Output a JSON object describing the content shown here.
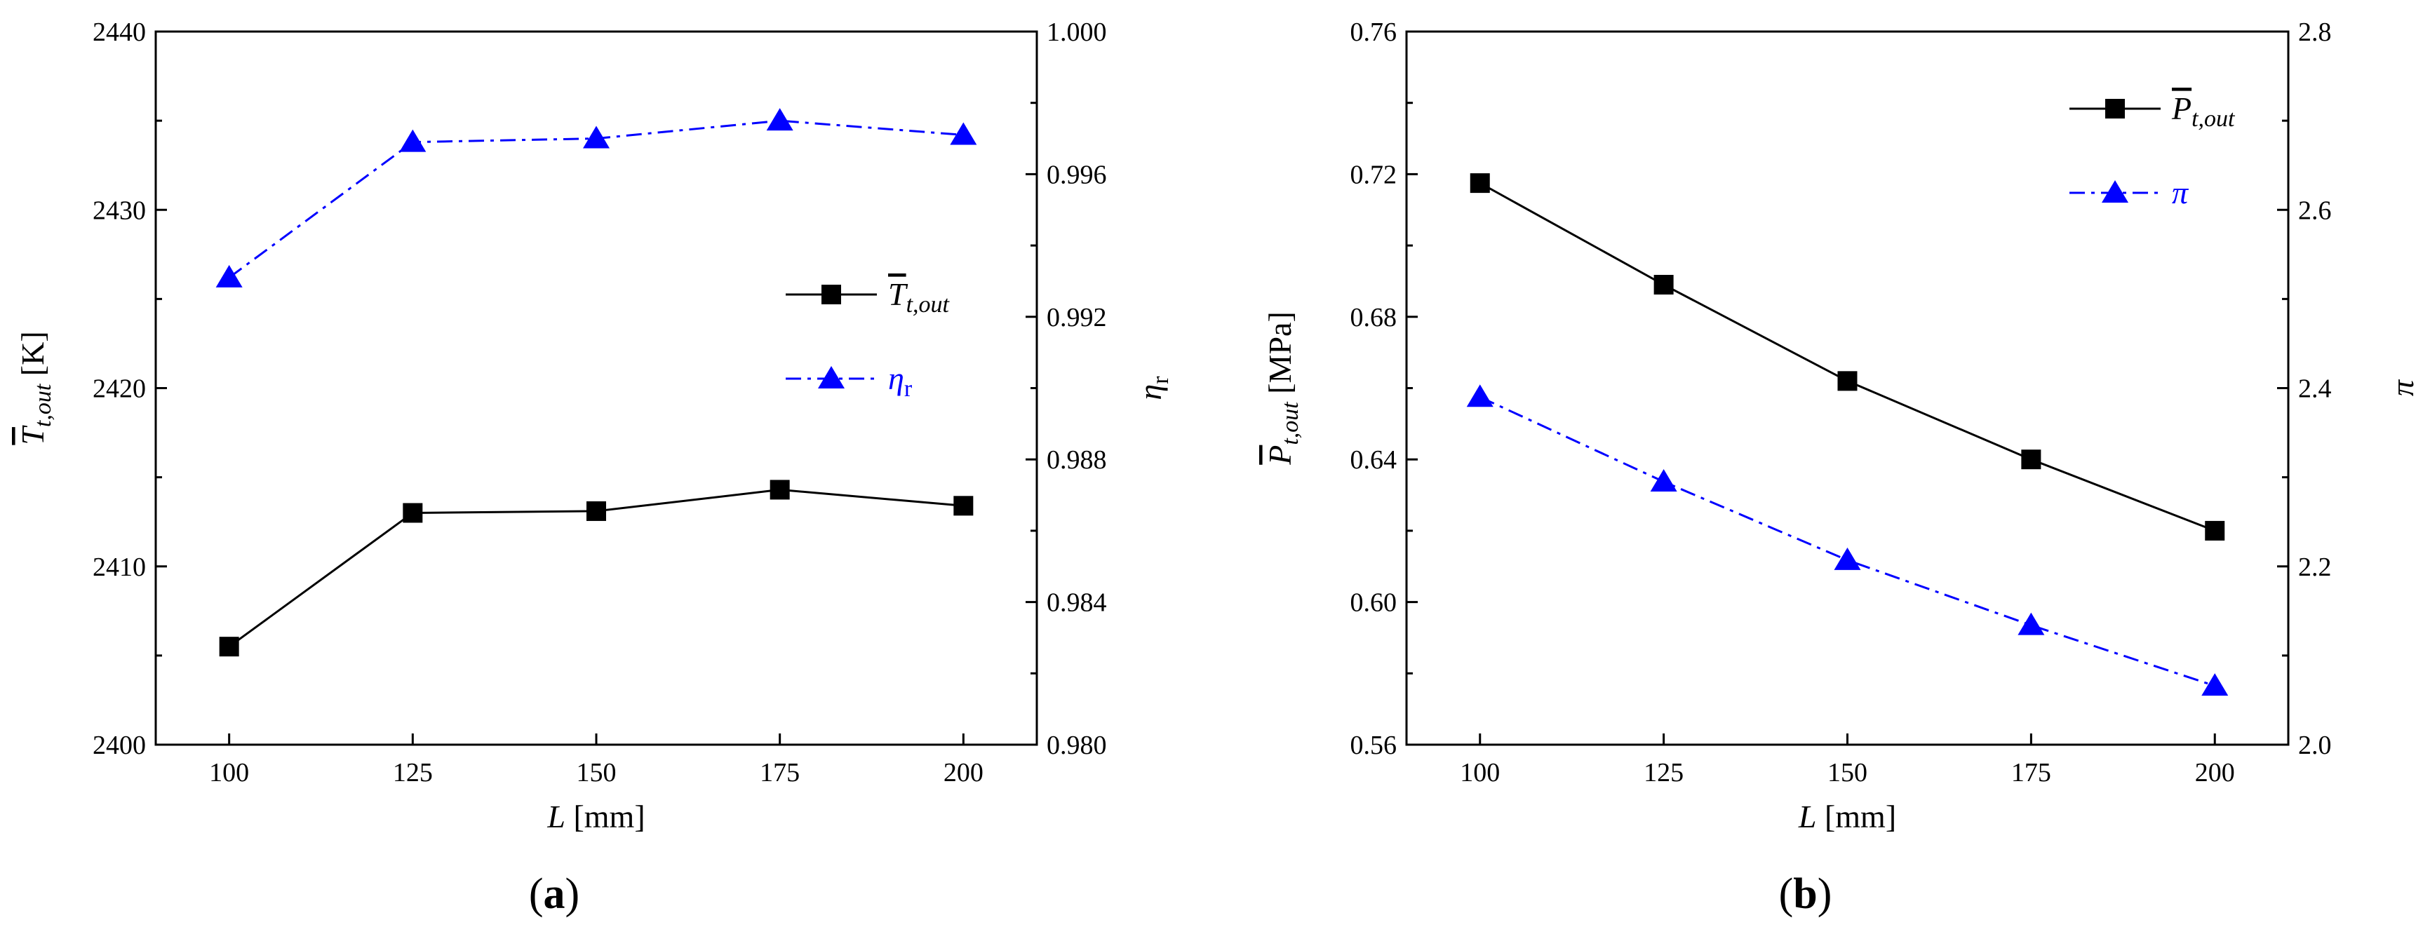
{
  "colors": {
    "black": "#000000",
    "blue": "#0000ff"
  },
  "chart_data": [
    {
      "type": "line",
      "panel_label": "(a)",
      "x": [
        100,
        125,
        150,
        175,
        200
      ],
      "xlabel": {
        "var": "L",
        "unit": " [mm]"
      },
      "xticks": [
        "100",
        "125",
        "150",
        "175",
        "200"
      ],
      "xlim": [
        90,
        210
      ],
      "y_left": {
        "label_main": "T",
        "label_sub": "t,out",
        "label_unit": " [K]",
        "lim": [
          2400,
          2440
        ],
        "ticks": [
          "2400",
          "2410",
          "2420",
          "2430",
          "2440"
        ]
      },
      "y_right": {
        "label_main": "η",
        "label_sub": "r",
        "lim": [
          0.98,
          1.0
        ],
        "ticks": [
          "0.980",
          "0.984",
          "0.988",
          "0.992",
          "0.996",
          "1.000"
        ]
      },
      "series": [
        {
          "name": "T_t,out",
          "legend_main": "T",
          "legend_sub": "t,out",
          "axis": "left",
          "marker": "square",
          "style": "solid",
          "color": "#000000",
          "values": [
            2405.5,
            2413.0,
            2413.1,
            2414.3,
            2413.4
          ]
        },
        {
          "name": "eta_r",
          "legend_main": "η",
          "legend_sub": "r",
          "axis": "right",
          "marker": "triangle",
          "style": "dashdot",
          "color": "#0000ff",
          "values": [
            0.9931,
            0.9969,
            0.997,
            0.9975,
            0.9971
          ]
        }
      ],
      "legend_position": "center-right"
    },
    {
      "type": "line",
      "panel_label": "(b)",
      "x": [
        100,
        125,
        150,
        175,
        200
      ],
      "xlabel": {
        "var": "L",
        "unit": " [mm]"
      },
      "xticks": [
        "100",
        "125",
        "150",
        "175",
        "200"
      ],
      "xlim": [
        90,
        210
      ],
      "y_left": {
        "label_main": "P",
        "label_sub": "t,out",
        "label_unit": " [MPa]",
        "lim": [
          0.56,
          0.76
        ],
        "ticks": [
          "0.56",
          "0.60",
          "0.64",
          "0.68",
          "0.72",
          "0.76"
        ]
      },
      "y_right": {
        "label_main": "π",
        "label_sub": "",
        "lim": [
          2.0,
          2.8
        ],
        "ticks": [
          "2.0",
          "2.2",
          "2.4",
          "2.6",
          "2.8"
        ]
      },
      "series": [
        {
          "name": "P_t,out",
          "legend_main": "P",
          "legend_sub": "t,out",
          "axis": "left",
          "marker": "square",
          "style": "solid",
          "color": "#000000",
          "values": [
            0.7175,
            0.689,
            0.662,
            0.64,
            0.62
          ]
        },
        {
          "name": "pi",
          "legend_main": "π",
          "legend_sub": "",
          "axis": "right",
          "marker": "triangle",
          "style": "dashdot",
          "color": "#0000ff",
          "values": [
            2.39,
            2.295,
            2.207,
            2.134,
            2.066
          ]
        }
      ],
      "legend_position": "top-right"
    }
  ]
}
